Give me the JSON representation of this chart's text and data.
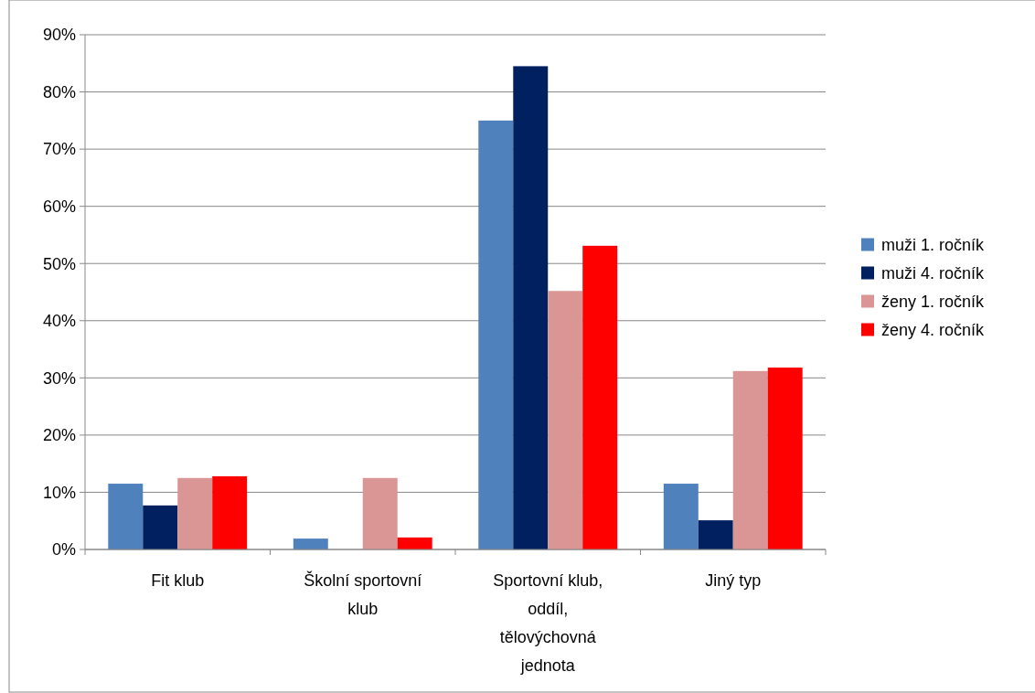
{
  "chart_data": {
    "type": "bar",
    "categories": [
      "Fit klub",
      "Školní sportovní klub",
      "Sportovní klub, oddíl, tělovýchovná jednota",
      "Jiný typ"
    ],
    "series": [
      {
        "name": "muži 1. ročník",
        "color": "#4f81bd",
        "values": [
          11.5,
          1.9,
          75,
          11.5
        ]
      },
      {
        "name": "muži 4. ročník",
        "color": "#002060",
        "values": [
          7.7,
          0,
          84.5,
          5.1
        ]
      },
      {
        "name": "ženy 1. ročník",
        "color": "#d99694",
        "values": [
          12.5,
          12.5,
          45.2,
          31.2
        ]
      },
      {
        "name": "ženy 4. ročník",
        "color": "#ff0000",
        "values": [
          12.8,
          2.1,
          53.1,
          31.8
        ]
      }
    ],
    "ylim": [
      0,
      90
    ],
    "yticks": [
      {
        "value": 0,
        "label": "0%"
      },
      {
        "value": 10,
        "label": "10%"
      },
      {
        "value": 20,
        "label": "20%"
      },
      {
        "value": 30,
        "label": "30%"
      },
      {
        "value": 40,
        "label": "40%"
      },
      {
        "value": 50,
        "label": "50%"
      },
      {
        "value": 60,
        "label": "60%"
      },
      {
        "value": 70,
        "label": "70%"
      },
      {
        "value": 80,
        "label": "80%"
      },
      {
        "value": 90,
        "label": "90%"
      }
    ],
    "grid": "y",
    "legend": "right"
  }
}
